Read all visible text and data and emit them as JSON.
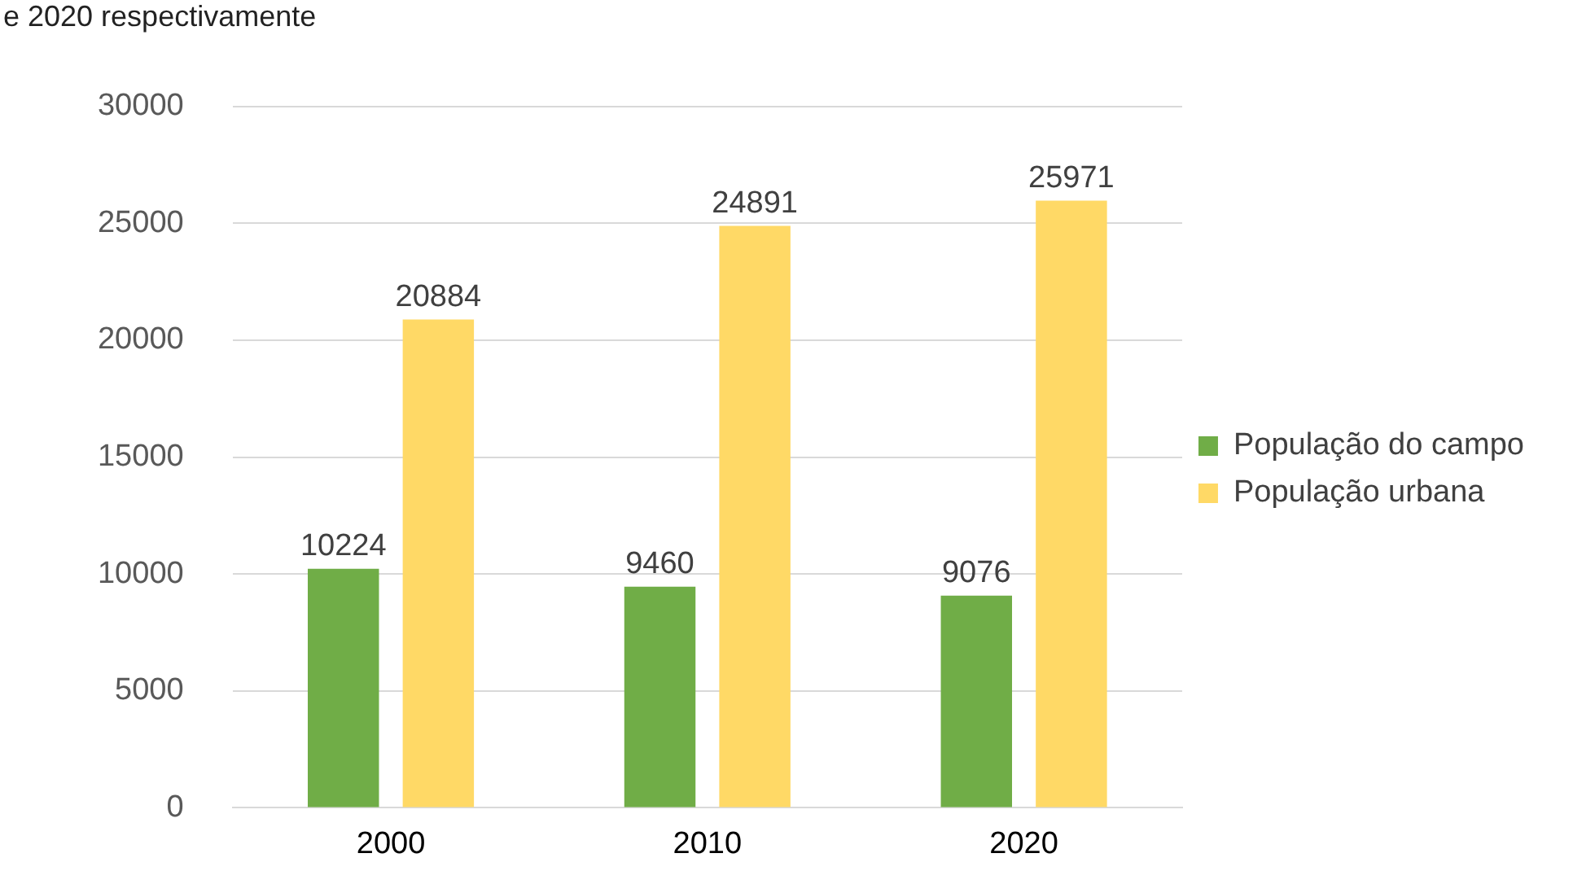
{
  "chart_data": {
    "type": "bar",
    "title": "e 2020 respectivamente",
    "categories": [
      "2000",
      "2010",
      "2020"
    ],
    "series": [
      {
        "name": "População do campo",
        "color": "#70ad47",
        "values": [
          10224,
          9460,
          9076
        ]
      },
      {
        "name": "População urbana",
        "color": "#ffd966",
        "values": [
          20884,
          24891,
          25971
        ]
      }
    ],
    "ylim": [
      0,
      30000
    ],
    "yticks": [
      0,
      5000,
      10000,
      15000,
      20000,
      25000,
      30000
    ],
    "grid": "y",
    "legend": "right",
    "data_labels": true
  }
}
